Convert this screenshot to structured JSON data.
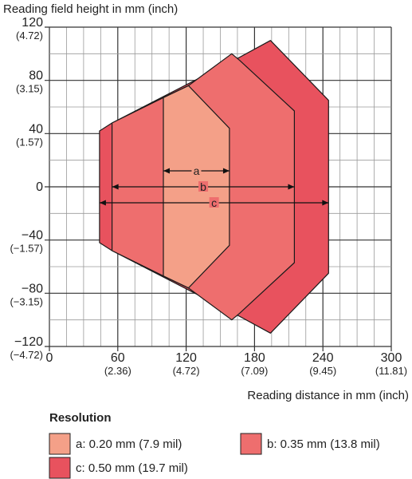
{
  "chart_data": {
    "type": "area",
    "ylabel": "Reading field height in mm (inch)",
    "xlabel": "Reading distance in mm (inch)",
    "xlim": [
      0,
      300
    ],
    "ylim": [
      -120,
      120
    ],
    "grid": true,
    "x_ticks": [
      {
        "value": 0,
        "label": "0",
        "sub": ""
      },
      {
        "value": 60,
        "label": "60",
        "sub": "(2.36)"
      },
      {
        "value": 120,
        "label": "120",
        "sub": "(4.72)"
      },
      {
        "value": 180,
        "label": "180",
        "sub": "(7.09)"
      },
      {
        "value": 240,
        "label": "240",
        "sub": "(9.45)"
      },
      {
        "value": 300,
        "label": "300",
        "sub": "(11.81)"
      }
    ],
    "y_ticks": [
      {
        "value": 120,
        "label": "120",
        "sub": "(4.72)"
      },
      {
        "value": 80,
        "label": "80",
        "sub": "(3.15)"
      },
      {
        "value": 40,
        "label": "40",
        "sub": "(1.57)"
      },
      {
        "value": 0,
        "label": "0",
        "sub": ""
      },
      {
        "value": -40,
        "label": "−40",
        "sub": "(−1.57)"
      },
      {
        "value": -80,
        "label": "−80",
        "sub": "(−3.15)"
      },
      {
        "value": -120,
        "label": "−120",
        "sub": "(−4.72)"
      }
    ],
    "series": [
      {
        "key": "c",
        "color": "#e8525e",
        "points": [
          [
            44,
            -42
          ],
          [
            44,
            42
          ],
          [
            55,
            48
          ],
          [
            164,
            96
          ],
          [
            194,
            110
          ],
          [
            245,
            65
          ],
          [
            245,
            -65
          ],
          [
            194,
            -110
          ],
          [
            164,
            -96
          ],
          [
            55,
            -48
          ]
        ]
      },
      {
        "key": "b",
        "color": "#ee6e6e",
        "points": [
          [
            55,
            -48
          ],
          [
            55,
            48
          ],
          [
            100,
            67
          ],
          [
            122,
            76
          ],
          [
            160,
            100
          ],
          [
            167,
            95
          ],
          [
            215,
            57
          ],
          [
            215,
            -57
          ],
          [
            167,
            -95
          ],
          [
            160,
            -100
          ],
          [
            122,
            -76
          ],
          [
            100,
            -67
          ]
        ]
      },
      {
        "key": "a",
        "color": "#f4a088",
        "points": [
          [
            100,
            -67
          ],
          [
            100,
            67
          ],
          [
            122,
            76
          ],
          [
            158,
            44
          ],
          [
            158,
            -44
          ],
          [
            122,
            -76
          ]
        ]
      }
    ],
    "ranges": [
      {
        "label": "a",
        "x0": 100,
        "x1": 158,
        "y": 12
      },
      {
        "label": "b",
        "x0": 55,
        "x1": 215,
        "y": 0
      },
      {
        "label": "c",
        "x0": 44,
        "x1": 245,
        "y": -12
      }
    ]
  },
  "legend": {
    "title": "Resolution",
    "items": [
      {
        "key": "a",
        "label": "a: 0.20 mm (7.9 mil)",
        "color": "#f4a088"
      },
      {
        "key": "b",
        "label": "b: 0.35 mm (13.8 mil)",
        "color": "#ee6e6e"
      },
      {
        "key": "c",
        "label": "c: 0.50 mm (19.7 mil)",
        "color": "#e8525e"
      }
    ]
  }
}
